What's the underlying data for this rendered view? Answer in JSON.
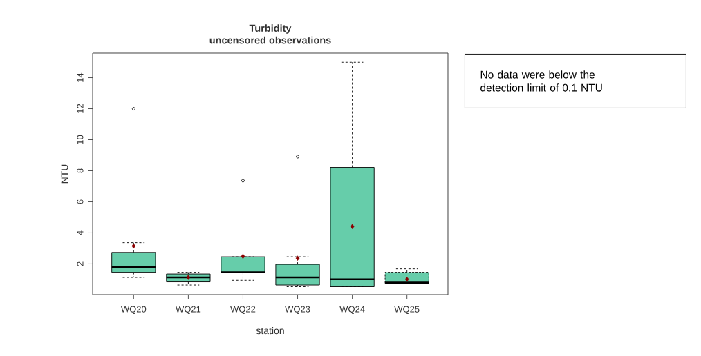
{
  "chart_data": {
    "type": "box",
    "title": "Turbidity",
    "subtitle": "uncensored observations",
    "xlabel": "station",
    "ylabel": "NTU",
    "categories": [
      "WQ20",
      "WQ21",
      "WQ22",
      "WQ23",
      "WQ24",
      "WQ25"
    ],
    "series": [
      {
        "color": "#66cdaa",
        "boxes": [
          {
            "low": 1.13,
            "q1": 1.46,
            "median": 1.8,
            "q3": 2.74,
            "high": 3.37,
            "outliers": [
              12.0
            ]
          },
          {
            "low": 0.64,
            "q1": 0.84,
            "median": 1.13,
            "q3": 1.35,
            "high": 1.46
          },
          {
            "low": 0.94,
            "q1": 1.46,
            "median": 1.46,
            "q3": 2.46,
            "high": 2.46,
            "outliers": [
              7.36
            ]
          },
          {
            "low": 0.53,
            "q1": 0.64,
            "median": 1.13,
            "q3": 1.97,
            "high": 2.46,
            "outliers": [
              8.91
            ]
          },
          {
            "low": 0.53,
            "q1": 0.53,
            "median": 1.01,
            "q3": 8.22,
            "high": 14.99
          },
          {
            "low": 0.75,
            "q1": 0.75,
            "median": 0.79,
            "q3": 1.46,
            "high": 1.68
          }
        ]
      },
      {
        "type": "scatter",
        "color": "#8b0000",
        "x": [
          "WQ20",
          "WQ21",
          "WQ22",
          "WQ23",
          "WQ24",
          "WQ25"
        ],
        "values": [
          3.15,
          1.13,
          2.49,
          2.37,
          4.41,
          1.01
        ]
      }
    ],
    "marker": "diamond",
    "ylim": [
      0.02,
      15.58
    ],
    "yticks": [
      2,
      4,
      6,
      8,
      10,
      12,
      14
    ],
    "annotations": [
      "No data were below the detection limit of 0.1 NTU"
    ]
  }
}
